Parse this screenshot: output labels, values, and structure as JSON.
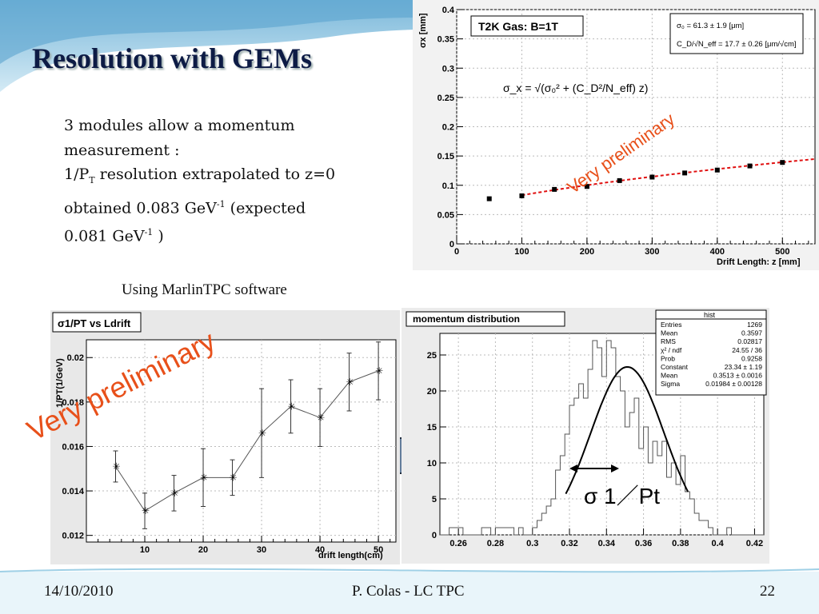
{
  "slide": {
    "title": "Resolution with GEMs",
    "body_line1": "3 modules allow a momentum measurement :",
    "body_line2_a": "1/P",
    "body_line2_sub": "T",
    "body_line2_b": " resolution extrapolated to z=0",
    "body_line3_a": "obtained 0.083 GeV",
    "body_line3_sup": "-1",
    "body_line3_b": "  (expected",
    "body_line4_a": "0.081 GeV",
    "body_line4_sup": "-1",
    "body_line4_b": " )",
    "caption": "Using MarlinTPC software",
    "footer_date": "14/10/2010",
    "footer_author": "P. Colas - LC TPC",
    "footer_page": "22"
  },
  "colors": {
    "title": "#0d1b45",
    "fit_line": "#e01010",
    "watermark": "#e8501a",
    "arrow": "#5b7593",
    "slide_bg": "#8ec6e0"
  },
  "chart_data": [
    {
      "type": "scatter",
      "box_label": "T2K Gas:  B=1T",
      "stats": [
        [
          "σ₀ = 61.3 ± 1.9 [μm]"
        ],
        [
          "C_D/√N_eff = 17.7 ± 0.26 [μm/√cm]"
        ]
      ],
      "formula": "σ_x = √(σ₀² + (C_D²/N_eff) z)",
      "watermark": "Very preliminary",
      "xlabel": "Drift Length: z [mm]",
      "ylabel": "σx [mm]",
      "xlim": [
        0,
        550
      ],
      "ylim": [
        0,
        0.4
      ],
      "x_ticks": [
        "0",
        "100",
        "200",
        "300",
        "400",
        "500"
      ],
      "y_ticks": [
        "0",
        "0.05",
        "0.1",
        "0.15",
        "0.2",
        "0.25",
        "0.3",
        "0.35",
        "0.4"
      ],
      "points": [
        [
          50,
          0.077
        ],
        [
          100,
          0.082
        ],
        [
          150,
          0.093
        ],
        [
          200,
          0.098
        ],
        [
          250,
          0.108
        ],
        [
          300,
          0.114
        ],
        [
          350,
          0.121
        ],
        [
          400,
          0.126
        ],
        [
          450,
          0.133
        ],
        [
          500,
          0.139
        ]
      ],
      "fit": {
        "sigma0": 0.0613,
        "cd": 0.0177
      },
      "grid": true
    },
    {
      "type": "line",
      "title": "σ1/PT vs Ldrift",
      "watermark": "Very preliminary",
      "xlabel": "drift length(cm)",
      "ylabel": "1/PT(1/GeV)",
      "xlim": [
        0,
        53
      ],
      "ylim": [
        0.0117,
        0.0208
      ],
      "x_ticks": [
        "10",
        "20",
        "30",
        "40",
        "50"
      ],
      "y_ticks": [
        "0.012",
        "0.014",
        "0.016",
        "0.018",
        "0.02"
      ],
      "points": [
        [
          5,
          0.0151,
          0.0007
        ],
        [
          10,
          0.0131,
          0.0008
        ],
        [
          15,
          0.0139,
          0.0008
        ],
        [
          20,
          0.0146,
          0.0013
        ],
        [
          25,
          0.0146,
          0.0008
        ],
        [
          30,
          0.0166,
          0.002
        ],
        [
          35,
          0.0178,
          0.0012
        ],
        [
          40,
          0.0173,
          0.0013
        ],
        [
          45,
          0.0189,
          0.0013
        ],
        [
          50,
          0.0194,
          0.0013
        ]
      ],
      "grid": true
    },
    {
      "type": "bar",
      "title": "momentum distribution",
      "stats_title": "hist",
      "stats": [
        [
          "Entries",
          "1269"
        ],
        [
          "Mean",
          "0.3597"
        ],
        [
          "RMS",
          "0.02817"
        ],
        [
          "χ² / ndf",
          "24.55 / 36"
        ],
        [
          "Prob",
          "0.9258"
        ],
        [
          "Constant",
          "23.34 ± 1.19"
        ],
        [
          "Mean",
          "0.3513 ± 0.0016"
        ],
        [
          "Sigma",
          "0.01984 ± 0.00128"
        ]
      ],
      "annotation": "σ 1／Pt",
      "xlim": [
        0.25,
        0.425
      ],
      "ylim": [
        0,
        28
      ],
      "x_ticks": [
        "0.26",
        "0.28",
        "0.3",
        "0.32",
        "0.34",
        "0.36",
        "0.38",
        "0.4",
        "0.42"
      ],
      "y_ticks": [
        "0",
        "5",
        "10",
        "15",
        "20",
        "25"
      ],
      "bin_start": 0.25,
      "bin_width": 0.0025,
      "values": [
        0,
        0,
        1,
        1,
        1,
        0,
        0,
        0,
        0,
        1,
        1,
        0,
        1,
        1,
        1,
        1,
        0,
        1,
        0,
        0,
        1,
        2,
        3,
        4,
        5,
        9,
        11,
        14,
        18,
        19,
        21,
        19,
        23,
        27,
        26,
        22,
        27,
        26,
        22,
        20,
        15,
        17,
        19,
        12,
        15,
        10,
        13,
        11,
        13,
        8,
        10,
        7,
        11,
        6,
        5,
        3,
        2,
        2,
        1,
        0,
        0,
        0,
        1,
        0,
        0,
        0,
        0,
        0,
        0,
        0
      ],
      "fit": {
        "constant": 23.34,
        "mean": 0.3513,
        "sigma": 0.01984,
        "from": 0.318,
        "to": 0.384
      },
      "grid": true
    }
  ]
}
